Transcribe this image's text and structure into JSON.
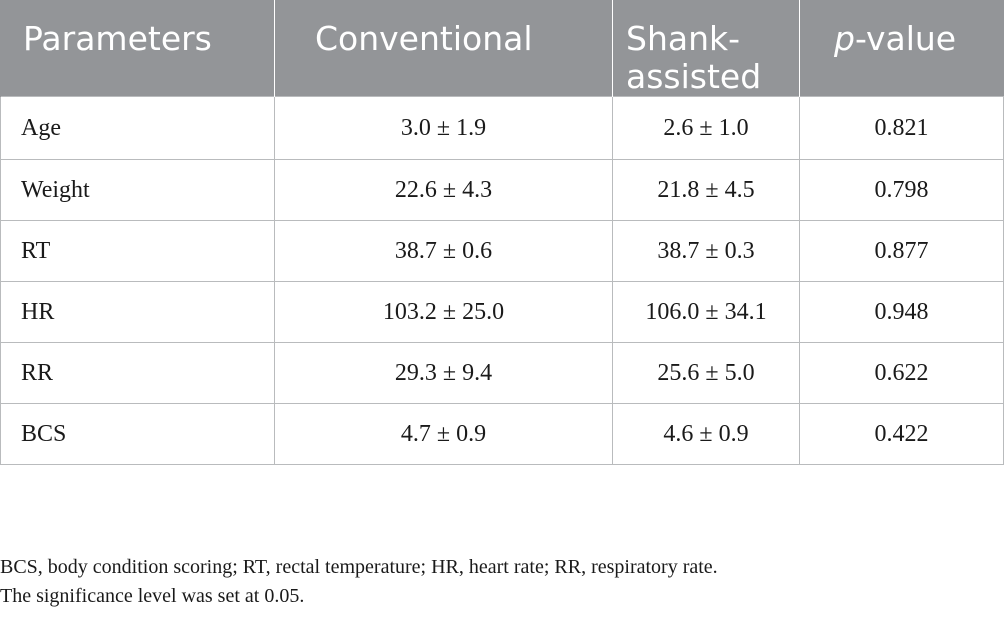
{
  "table": {
    "headers": {
      "parameters": "Parameters",
      "conventional": "Conventional",
      "shank_line1": "Shank-",
      "shank_line2": "assisted",
      "p_italic": "p",
      "p_rest": "-value"
    },
    "rows": [
      {
        "parameter": "Age",
        "conventional": "3.0 ± 1.9",
        "shank": "2.6 ± 1.0",
        "p": "0.821"
      },
      {
        "parameter": "Weight",
        "conventional": "22.6 ± 4.3",
        "shank": "21.8 ± 4.5",
        "p": "0.798"
      },
      {
        "parameter": "RT",
        "conventional": "38.7 ± 0.6",
        "shank": "38.7 ± 0.3",
        "p": "0.877"
      },
      {
        "parameter": "HR",
        "conventional": "103.2 ± 25.0",
        "shank": "106.0 ± 34.1",
        "p": "0.948"
      },
      {
        "parameter": "RR",
        "conventional": "29.3 ± 9.4",
        "shank": "25.6 ± 5.0",
        "p": "0.622"
      },
      {
        "parameter": "BCS",
        "conventional": "4.7 ± 0.9",
        "shank": "4.6 ± 0.9",
        "p": "0.422"
      }
    ]
  },
  "footnotes": {
    "abbreviations": "BCS, body condition scoring; RT, rectal temperature; HR, heart rate; RR, respiratory rate.",
    "significance": "The significance level was set at 0.05."
  },
  "colors": {
    "header_background": "#939598",
    "header_text": "#ffffff",
    "grid_line": "#b9bbbd"
  }
}
